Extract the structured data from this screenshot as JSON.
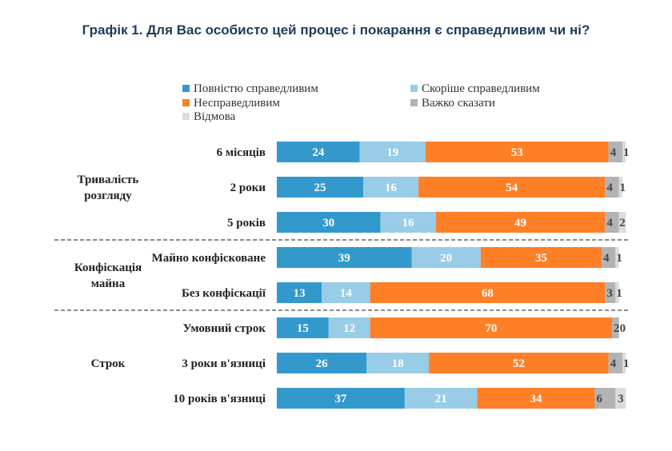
{
  "chart_data": {
    "type": "bar",
    "orientation": "horizontal-stacked",
    "title": "Графік 1. Для Вас особисто цей процес і покарання є справедливим чи ні?",
    "legend": [
      {
        "name": "Повністю справедливим",
        "color": "#3399cc"
      },
      {
        "name": "Скоріше справедливим",
        "color": "#99cce6"
      },
      {
        "name": "Несправедливим",
        "color": "#ff7f27"
      },
      {
        "name": "Важко сказати",
        "color": "#b3b3b3"
      },
      {
        "name": "Відмова",
        "color": "#dcdcdc"
      }
    ],
    "groups": [
      {
        "label_lines": [
          "Тривалість",
          "розгляду"
        ],
        "row_start": 0,
        "row_end": 2
      },
      {
        "label_lines": [
          "Конфіскація",
          "майна"
        ],
        "row_start": 3,
        "row_end": 4
      },
      {
        "label_lines": [
          "Строк"
        ],
        "row_start": 5,
        "row_end": 7
      }
    ],
    "categories": [
      "6 місяців",
      "2 роки",
      "5 років",
      "Майно конфісковане",
      "Без конфіскації",
      "Умовний строк",
      "3 роки в'язниці",
      "10 років в'язниці"
    ],
    "series": [
      {
        "name": "Повністю справедливим",
        "values": [
          24,
          25,
          30,
          39,
          13,
          15,
          26,
          37
        ]
      },
      {
        "name": "Скоріше справедливим",
        "values": [
          19,
          16,
          16,
          20,
          14,
          12,
          18,
          21
        ]
      },
      {
        "name": "Несправедливим",
        "values": [
          53,
          54,
          49,
          35,
          68,
          70,
          52,
          34
        ]
      },
      {
        "name": "Важко сказати",
        "values": [
          4,
          4,
          4,
          4,
          3,
          2,
          4,
          6
        ]
      },
      {
        "name": "Відмова",
        "values": [
          1,
          1,
          2,
          1,
          1,
          0,
          1,
          3
        ]
      }
    ],
    "xlim": [
      0,
      100
    ]
  }
}
